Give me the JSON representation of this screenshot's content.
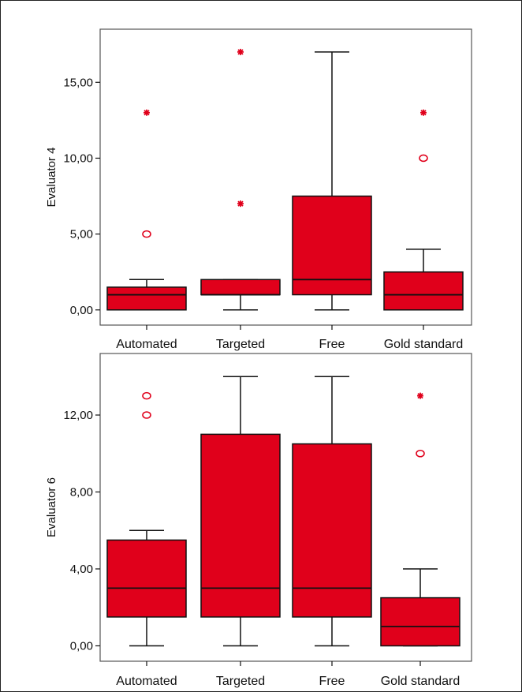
{
  "colors": {
    "box_fill": "#e0001b",
    "outlier": "#e0001b",
    "line": "#111111",
    "plot_bg": "#ffffff"
  },
  "chart_data": [
    {
      "type": "boxplot",
      "title": "",
      "xlabel": "",
      "ylabel": "Evaluator 4",
      "ylim": [
        -1,
        18.5
      ],
      "yticks": [
        0,
        5,
        10,
        15
      ],
      "ytick_labels": [
        "0,00",
        "5,00",
        "10,00",
        "15,00"
      ],
      "categories": [
        "Automated",
        "Targeted",
        "Free",
        "Gold standard"
      ],
      "boxes": [
        {
          "whisker_low": 0,
          "q1": 0,
          "median": 1,
          "q3": 1.5,
          "whisker_high": 2,
          "outliers_circle": [
            5
          ],
          "outliers_star": [
            13
          ]
        },
        {
          "whisker_low": 0,
          "q1": 1,
          "median": 1,
          "q3": 2,
          "whisker_high": 2,
          "outliers_circle": [],
          "outliers_star": [
            7,
            17
          ]
        },
        {
          "whisker_low": 0,
          "q1": 1,
          "median": 2,
          "q3": 7.5,
          "whisker_high": 17,
          "outliers_circle": [],
          "outliers_star": []
        },
        {
          "whisker_low": 0,
          "q1": 0,
          "median": 1,
          "q3": 2.5,
          "whisker_high": 4,
          "outliers_circle": [
            10
          ],
          "outliers_star": [
            13
          ]
        }
      ],
      "grid": false
    },
    {
      "type": "boxplot",
      "title": "",
      "xlabel": "",
      "ylabel": "Evaluator 6",
      "ylim": [
        -0.8,
        15.2
      ],
      "yticks": [
        0,
        4,
        8,
        12
      ],
      "ytick_labels": [
        "0,00",
        "4,00",
        "8,00",
        "12,00"
      ],
      "categories": [
        "Automated",
        "Targeted",
        "Free",
        "Gold standard"
      ],
      "boxes": [
        {
          "whisker_low": 0,
          "q1": 1.5,
          "median": 3,
          "q3": 5.5,
          "whisker_high": 6,
          "outliers_circle": [
            12,
            13
          ],
          "outliers_star": []
        },
        {
          "whisker_low": 0,
          "q1": 1.5,
          "median": 3,
          "q3": 11,
          "whisker_high": 14,
          "outliers_circle": [],
          "outliers_star": []
        },
        {
          "whisker_low": 0,
          "q1": 1.5,
          "median": 3,
          "q3": 10.5,
          "whisker_high": 14,
          "outliers_circle": [],
          "outliers_star": []
        },
        {
          "whisker_low": 0,
          "q1": 0,
          "median": 1,
          "q3": 2.5,
          "whisker_high": 4,
          "outliers_circle": [
            10
          ],
          "outliers_star": [
            13
          ]
        }
      ],
      "grid": false
    }
  ]
}
